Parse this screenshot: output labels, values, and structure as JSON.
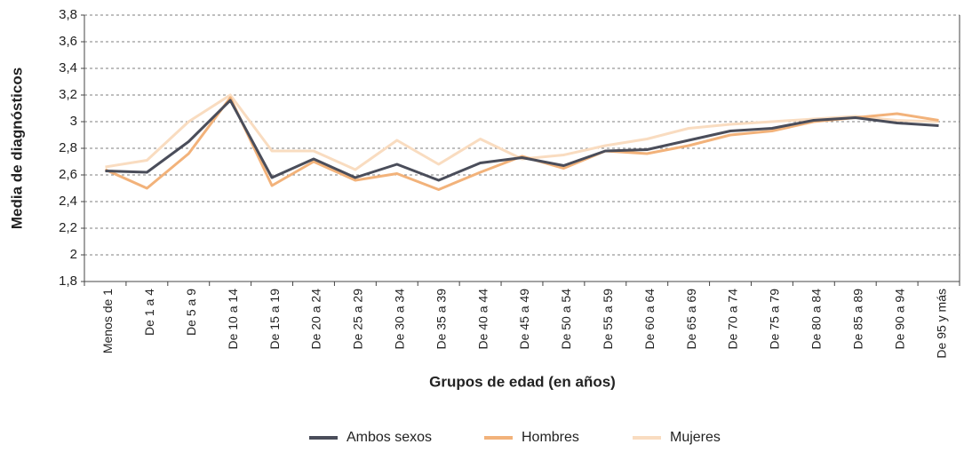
{
  "chart_data": {
    "type": "line",
    "y_label": "Media de diagnósticos",
    "x_label": "Grupos de edad (en años)",
    "categories": [
      "Menos de 1",
      "De 1 a 4",
      "De 5 a 9",
      "De 10 a 14",
      "De 15 a 19",
      "De 20 a 24",
      "De 25 a 29",
      "De 30 a 34",
      "De 35 a 39",
      "De 40 a 44",
      "De 45 a 49",
      "De 50 a 54",
      "De 55 a 59",
      "De 60 a 64",
      "De 65 a 69",
      "De 70 a 74",
      "De 75 a 79",
      "De 80 a 84",
      "De 85 a 89",
      "De 90 a 94",
      "De 95 y más"
    ],
    "series": [
      {
        "name": "Ambos sexos",
        "color": "#4a4d5a",
        "values": [
          2.63,
          2.62,
          2.85,
          3.16,
          2.58,
          2.72,
          2.58,
          2.68,
          2.56,
          2.69,
          2.73,
          2.67,
          2.78,
          2.79,
          2.86,
          2.93,
          2.95,
          3.01,
          3.03,
          2.99,
          2.97
        ]
      },
      {
        "name": "Hombres",
        "color": "#f2b27a",
        "values": [
          2.64,
          2.5,
          2.76,
          3.18,
          2.52,
          2.7,
          2.56,
          2.61,
          2.49,
          2.62,
          2.74,
          2.65,
          2.78,
          2.76,
          2.82,
          2.9,
          2.93,
          3.0,
          3.03,
          3.06,
          3.01
        ]
      },
      {
        "name": "Mujeres",
        "color": "#f9dcc0",
        "values": [
          2.66,
          2.71,
          3.0,
          3.2,
          2.78,
          2.78,
          2.64,
          2.86,
          2.68,
          2.87,
          2.72,
          2.75,
          2.82,
          2.87,
          2.95,
          2.98,
          3.0,
          3.02,
          3.04,
          3.01,
          3.0
        ]
      }
    ],
    "ylim": [
      1.8,
      3.8
    ],
    "yticks": [
      {
        "value": 1.8,
        "label": "1,8"
      },
      2,
      {
        "value": 2.2,
        "label": "2,2"
      },
      {
        "value": 2.4,
        "label": "2,4"
      },
      {
        "value": 2.6,
        "label": "2,6"
      },
      {
        "value": 2.8,
        "label": "2,8"
      },
      3,
      {
        "value": 3.2,
        "label": "3,2"
      },
      {
        "value": 3.4,
        "label": "3,4"
      },
      {
        "value": 3.6,
        "label": "3,6"
      },
      {
        "value": 3.8,
        "label": "3,8"
      }
    ],
    "grid": true,
    "legend": "bottom"
  }
}
